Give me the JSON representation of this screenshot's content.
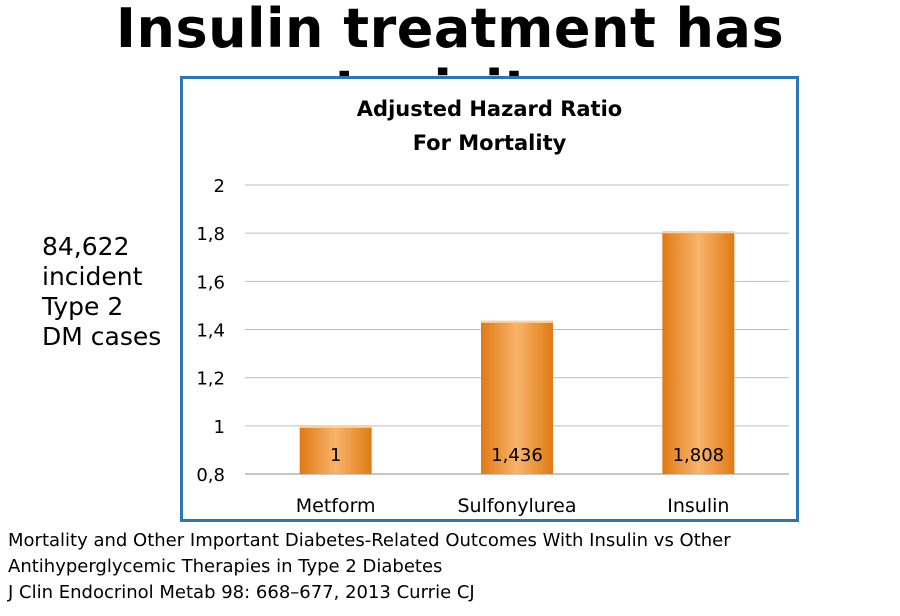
{
  "slide": {
    "title": "Insulin treatment has toxicity",
    "side_note": [
      "84,622",
      "incident",
      "Type 2",
      "DM cases"
    ],
    "citation": [
      "Mortality and Other Important Diabetes-Related Outcomes With Insulin vs Other",
      "Antihyperglycemic Therapies in Type 2 Diabetes",
      "J Clin Endocrinol Metab 98: 668–677, 2013 Currie CJ"
    ]
  },
  "chart_data": {
    "type": "bar",
    "title": [
      "Adjusted Hazard Ratio",
      "For Mortality"
    ],
    "categories": [
      "Metform",
      "Sulfonylurea",
      "Insulin"
    ],
    "values": [
      1,
      1.436,
      1.808
    ],
    "data_labels": [
      "1",
      "1,436",
      "1,808"
    ],
    "ylim": [
      0.8,
      2
    ],
    "yticks": [
      "0,8",
      "1",
      "1,2",
      "1,4",
      "1,6",
      "1,8",
      "2"
    ],
    "xlabel": "",
    "ylabel": "",
    "grid": true,
    "legend": "none",
    "colors": {
      "bar_light": "#f8b46a",
      "bar_dark": "#e07a14",
      "frame": "#2e75b6",
      "grid": "#bfbfbf"
    }
  }
}
